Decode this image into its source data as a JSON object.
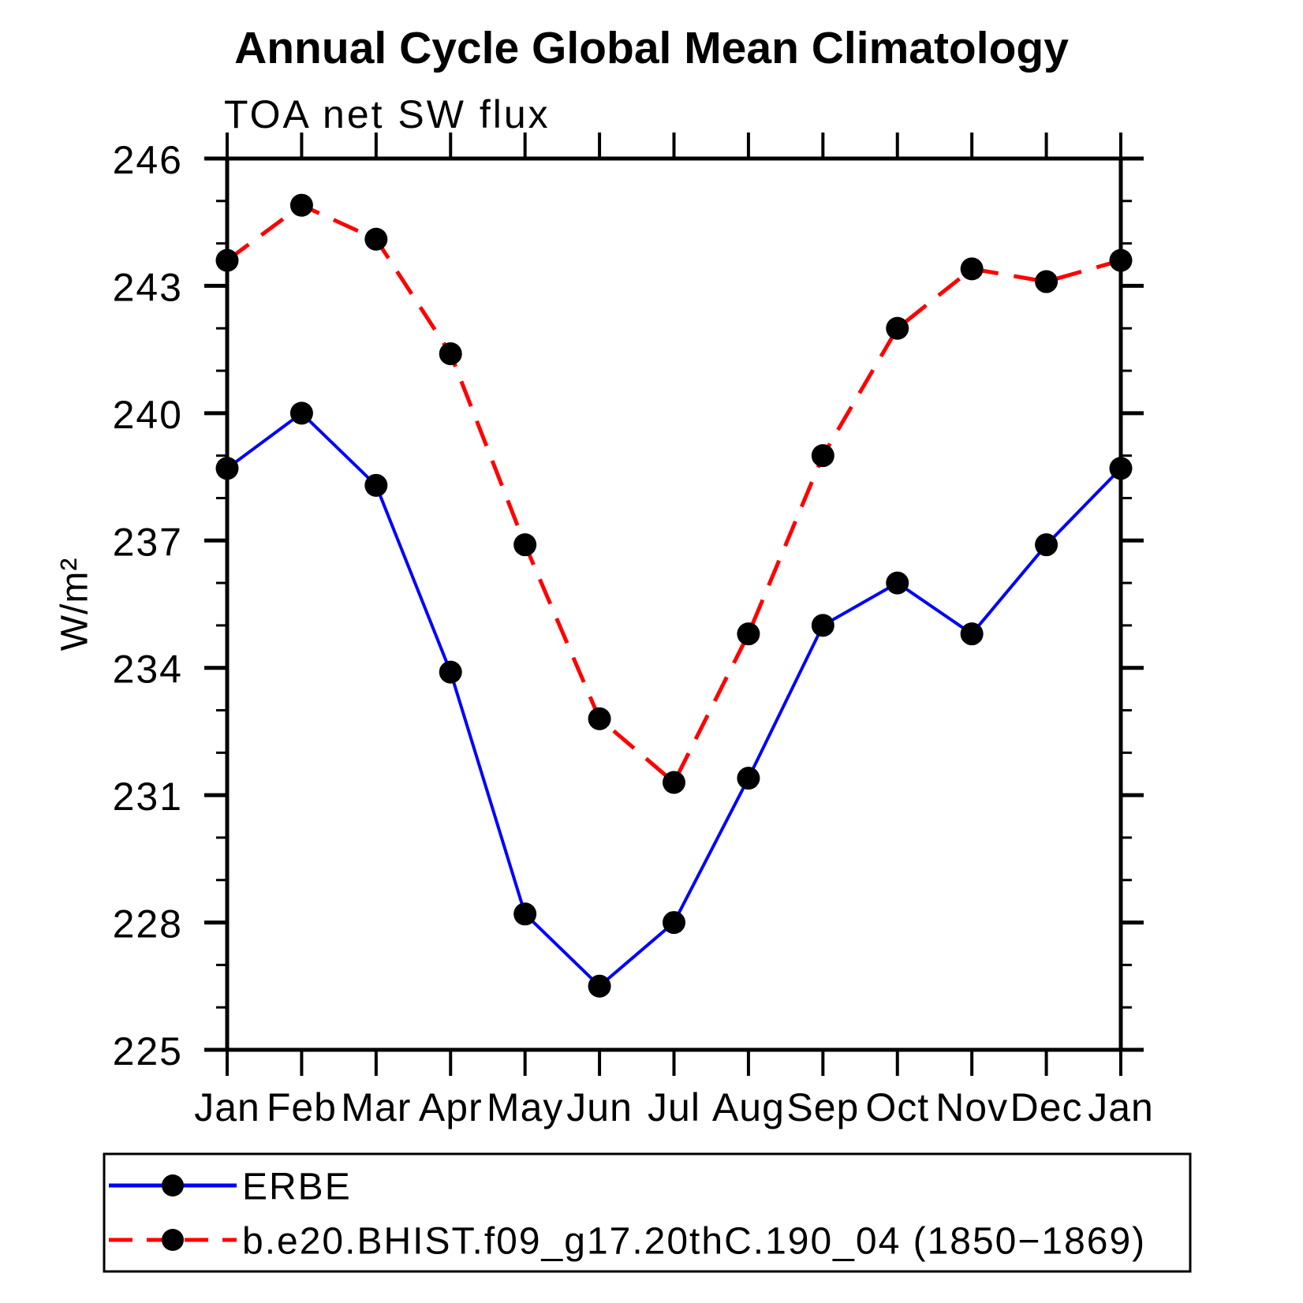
{
  "chart_data": {
    "type": "line",
    "title": "Annual Cycle Global Mean Climatology",
    "subtitle": "TOA net SW flux",
    "ylabel": "W/m²",
    "ylim": [
      225,
      246
    ],
    "ytick_major_step": 3,
    "ytick_minor_step": 1,
    "ytick_labels": [
      "225",
      "228",
      "231",
      "234",
      "237",
      "240",
      "243",
      "246"
    ],
    "grid": false,
    "legend_position": "bottom-box",
    "categories": [
      "Jan",
      "Feb",
      "Mar",
      "Apr",
      "May",
      "Jun",
      "Jul",
      "Aug",
      "Sep",
      "Oct",
      "Nov",
      "Dec",
      "Jan"
    ],
    "series": [
      {
        "name": "ERBE",
        "color": "#0000ff",
        "line_style": "solid",
        "marker": "circle",
        "marker_color": "#000000",
        "values": [
          238.7,
          240.0,
          238.3,
          233.9,
          228.2,
          226.5,
          228.0,
          231.4,
          235.0,
          236.0,
          234.8,
          236.9,
          238.7
        ]
      },
      {
        "name": "b.e20.BHIST.f09_g17.20thC.190_04 (1850−1869)",
        "color": "#ff0000",
        "line_style": "dashed",
        "marker": "circle",
        "marker_color": "#000000",
        "values": [
          243.6,
          244.9,
          244.1,
          241.4,
          236.9,
          232.8,
          231.3,
          234.8,
          239.0,
          242.0,
          243.4,
          243.1,
          243.6
        ]
      }
    ]
  }
}
